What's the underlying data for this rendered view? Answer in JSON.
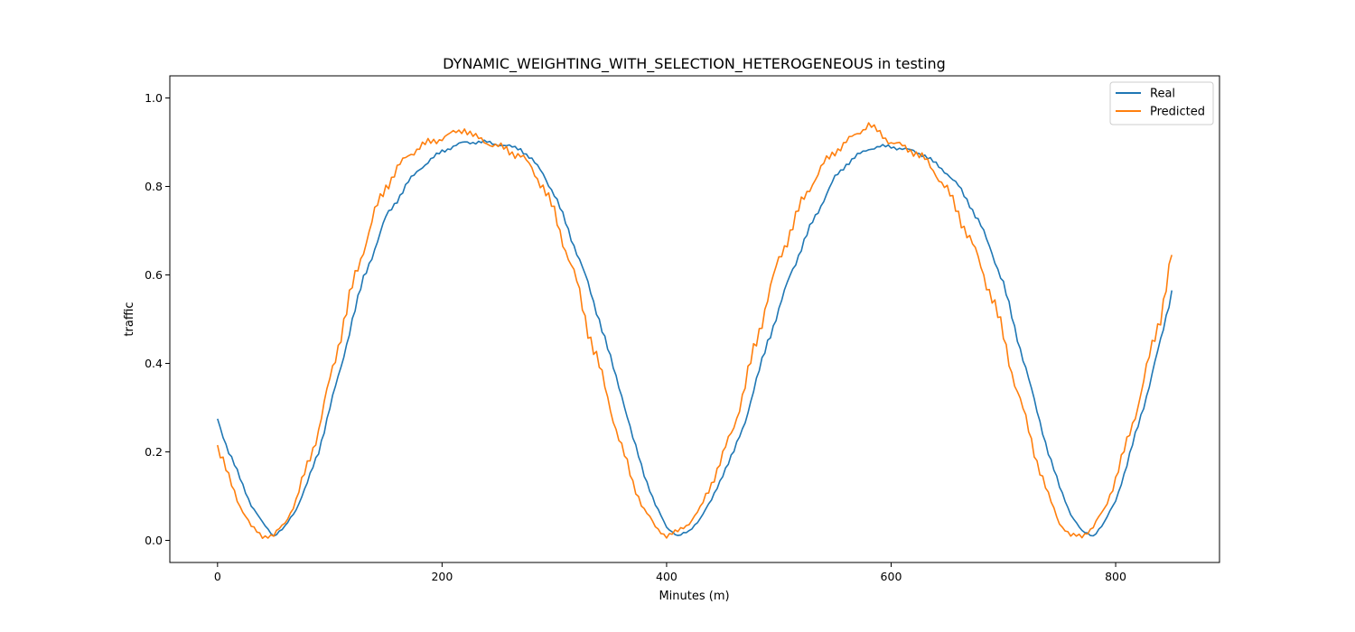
{
  "chart_data": {
    "type": "line",
    "title": "DYNAMIC_WEIGHTING_WITH_SELECTION_HETEROGENEOUS in testing",
    "xlabel": "Minutes (m)",
    "ylabel": "traffic",
    "xlim": [
      -42.5,
      892.5
    ],
    "ylim": [
      -0.05,
      1.05
    ],
    "xticks": [
      0,
      200,
      400,
      600,
      800
    ],
    "yticks": [
      0.0,
      0.2,
      0.4,
      0.6,
      0.8,
      1.0
    ],
    "xtick_labels": [
      "0",
      "200",
      "400",
      "600",
      "800"
    ],
    "ytick_labels": [
      "0.0",
      "0.2",
      "0.4",
      "0.6",
      "0.8",
      "1.0"
    ],
    "grid": false,
    "legend": {
      "position": "top-right"
    },
    "series": [
      {
        "name": "Real",
        "color": "#1f77b4",
        "x": [
          0,
          10,
          20,
          30,
          40,
          50,
          60,
          70,
          80,
          90,
          100,
          110,
          120,
          130,
          140,
          150,
          160,
          170,
          180,
          190,
          200,
          210,
          220,
          230,
          240,
          250,
          260,
          270,
          280,
          290,
          300,
          310,
          320,
          330,
          340,
          350,
          360,
          370,
          380,
          390,
          400,
          410,
          420,
          430,
          440,
          450,
          460,
          470,
          480,
          490,
          500,
          510,
          520,
          530,
          540,
          550,
          560,
          570,
          580,
          590,
          600,
          610,
          620,
          630,
          640,
          650,
          660,
          670,
          680,
          690,
          700,
          710,
          720,
          730,
          740,
          750,
          760,
          770,
          780,
          790,
          800,
          810,
          820,
          830,
          840,
          850
        ],
        "y": [
          0.275,
          0.2,
          0.14,
          0.08,
          0.04,
          0.01,
          0.03,
          0.07,
          0.13,
          0.2,
          0.3,
          0.39,
          0.5,
          0.59,
          0.66,
          0.73,
          0.77,
          0.81,
          0.84,
          0.86,
          0.88,
          0.89,
          0.9,
          0.9,
          0.9,
          0.895,
          0.89,
          0.885,
          0.86,
          0.83,
          0.78,
          0.72,
          0.65,
          0.58,
          0.5,
          0.41,
          0.33,
          0.23,
          0.15,
          0.08,
          0.03,
          0.01,
          0.02,
          0.05,
          0.09,
          0.15,
          0.2,
          0.27,
          0.36,
          0.45,
          0.52,
          0.6,
          0.66,
          0.72,
          0.77,
          0.82,
          0.85,
          0.87,
          0.885,
          0.89,
          0.89,
          0.885,
          0.88,
          0.87,
          0.85,
          0.83,
          0.8,
          0.76,
          0.71,
          0.65,
          0.58,
          0.48,
          0.39,
          0.29,
          0.2,
          0.12,
          0.06,
          0.02,
          0.01,
          0.04,
          0.09,
          0.17,
          0.26,
          0.35,
          0.45,
          0.565
        ]
      },
      {
        "name": "Predicted",
        "color": "#ff7f0e",
        "x": [
          0,
          10,
          20,
          30,
          40,
          50,
          60,
          70,
          80,
          90,
          100,
          110,
          120,
          130,
          140,
          150,
          160,
          170,
          180,
          190,
          200,
          210,
          220,
          230,
          240,
          250,
          260,
          270,
          280,
          290,
          300,
          310,
          320,
          330,
          340,
          350,
          360,
          370,
          380,
          390,
          400,
          410,
          420,
          430,
          440,
          450,
          460,
          470,
          480,
          490,
          500,
          510,
          520,
          530,
          540,
          550,
          560,
          570,
          580,
          590,
          600,
          610,
          620,
          630,
          640,
          650,
          660,
          670,
          680,
          690,
          700,
          710,
          720,
          730,
          740,
          750,
          760,
          770,
          780,
          790,
          800,
          810,
          820,
          830,
          840,
          850
        ],
        "y": [
          0.215,
          0.14,
          0.08,
          0.03,
          0.01,
          0.01,
          0.04,
          0.09,
          0.17,
          0.25,
          0.36,
          0.47,
          0.57,
          0.66,
          0.74,
          0.8,
          0.84,
          0.87,
          0.89,
          0.9,
          0.91,
          0.92,
          0.93,
          0.91,
          0.9,
          0.89,
          0.88,
          0.87,
          0.84,
          0.8,
          0.74,
          0.66,
          0.58,
          0.48,
          0.39,
          0.3,
          0.21,
          0.13,
          0.07,
          0.03,
          0.01,
          0.02,
          0.04,
          0.07,
          0.13,
          0.19,
          0.26,
          0.35,
          0.45,
          0.55,
          0.63,
          0.7,
          0.76,
          0.81,
          0.85,
          0.88,
          0.9,
          0.92,
          0.94,
          0.92,
          0.9,
          0.89,
          0.88,
          0.86,
          0.83,
          0.79,
          0.74,
          0.68,
          0.62,
          0.55,
          0.46,
          0.36,
          0.27,
          0.18,
          0.1,
          0.04,
          0.01,
          0.01,
          0.03,
          0.07,
          0.14,
          0.22,
          0.31,
          0.41,
          0.51,
          0.645
        ]
      }
    ]
  }
}
